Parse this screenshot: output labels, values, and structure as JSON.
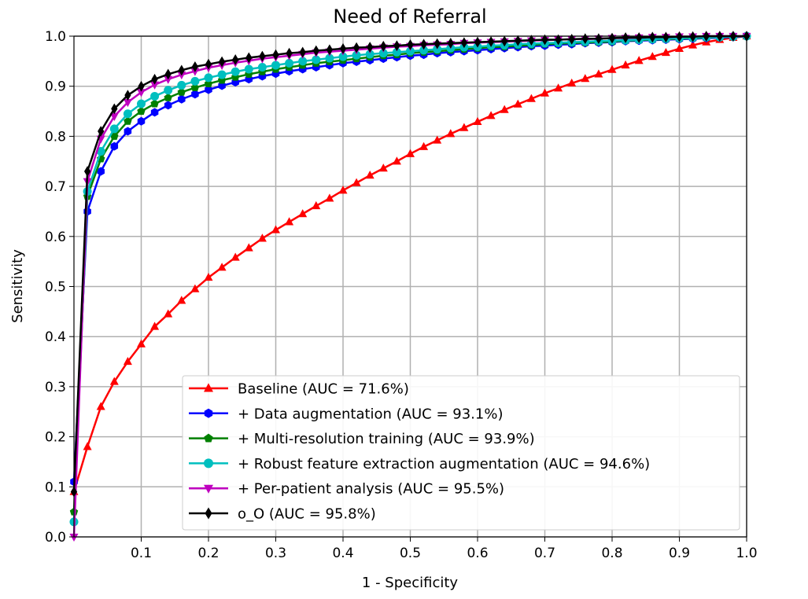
{
  "chart_data": {
    "type": "line",
    "title": "Need of Referral",
    "xlabel": "1 - Specificity",
    "ylabel": "Sensitivity",
    "xlim": [
      0,
      1
    ],
    "ylim": [
      0,
      1
    ],
    "grid": true,
    "legend_position": "lower-right",
    "x_ticks": [
      "0.1",
      "0.2",
      "0.3",
      "0.4",
      "0.5",
      "0.6",
      "0.7",
      "0.8",
      "0.9",
      "1.0"
    ],
    "x_tick_values": [
      0.1,
      0.2,
      0.3,
      0.4,
      0.5,
      0.6,
      0.7,
      0.8,
      0.9,
      1.0
    ],
    "y_ticks": [
      "0.0",
      "0.1",
      "0.2",
      "0.3",
      "0.4",
      "0.5",
      "0.6",
      "0.7",
      "0.8",
      "0.9",
      "1.0"
    ],
    "y_tick_values": [
      0,
      0.1,
      0.2,
      0.3,
      0.4,
      0.5,
      0.6,
      0.7,
      0.8,
      0.9,
      1.0
    ],
    "series": [
      {
        "name": "Baseline (AUC = 71.6%)",
        "color": "#ff0000",
        "marker": "triangle-up",
        "x": [
          0,
          0.02,
          0.04,
          0.06,
          0.08,
          0.1,
          0.12,
          0.14,
          0.16,
          0.18,
          0.2,
          0.22,
          0.24,
          0.26,
          0.28,
          0.3,
          0.32,
          0.34,
          0.36,
          0.38,
          0.4,
          0.42,
          0.44,
          0.46,
          0.48,
          0.5,
          0.52,
          0.54,
          0.56,
          0.58,
          0.6,
          0.62,
          0.64,
          0.66,
          0.68,
          0.7,
          0.72,
          0.74,
          0.76,
          0.78,
          0.8,
          0.82,
          0.84,
          0.86,
          0.88,
          0.9,
          0.92,
          0.94,
          0.96,
          0.98,
          1.0
        ],
        "y": [
          0.09,
          0.18,
          0.26,
          0.31,
          0.35,
          0.385,
          0.42,
          0.445,
          0.472,
          0.495,
          0.518,
          0.538,
          0.558,
          0.577,
          0.596,
          0.613,
          0.629,
          0.645,
          0.661,
          0.676,
          0.692,
          0.707,
          0.722,
          0.736,
          0.75,
          0.765,
          0.779,
          0.792,
          0.805,
          0.817,
          0.829,
          0.841,
          0.853,
          0.864,
          0.875,
          0.886,
          0.896,
          0.906,
          0.915,
          0.924,
          0.933,
          0.942,
          0.951,
          0.959,
          0.967,
          0.975,
          0.982,
          0.988,
          0.993,
          0.997,
          1.0
        ]
      },
      {
        "name": "+ Data augmentation (AUC = 93.1%)",
        "color": "#0000ff",
        "marker": "hexagon",
        "x": [
          0,
          0.02,
          0.04,
          0.06,
          0.08,
          0.1,
          0.12,
          0.14,
          0.16,
          0.18,
          0.2,
          0.22,
          0.24,
          0.26,
          0.28,
          0.3,
          0.32,
          0.34,
          0.36,
          0.38,
          0.4,
          0.42,
          0.44,
          0.46,
          0.48,
          0.5,
          0.52,
          0.54,
          0.56,
          0.58,
          0.6,
          0.62,
          0.64,
          0.66,
          0.68,
          0.7,
          0.72,
          0.74,
          0.76,
          0.78,
          0.8,
          0.82,
          0.84,
          0.86,
          0.88,
          0.9,
          0.92,
          0.94,
          0.96,
          0.98,
          1.0
        ],
        "y": [
          0.11,
          0.65,
          0.73,
          0.78,
          0.81,
          0.83,
          0.848,
          0.862,
          0.874,
          0.884,
          0.893,
          0.901,
          0.908,
          0.914,
          0.92,
          0.925,
          0.93,
          0.934,
          0.938,
          0.942,
          0.946,
          0.949,
          0.952,
          0.955,
          0.958,
          0.961,
          0.963,
          0.966,
          0.968,
          0.97,
          0.972,
          0.974,
          0.976,
          0.978,
          0.98,
          0.981,
          0.983,
          0.984,
          0.986,
          0.987,
          0.988,
          0.99,
          0.991,
          0.992,
          0.993,
          0.994,
          0.995,
          0.996,
          0.997,
          0.998,
          1.0
        ]
      },
      {
        "name": "+ Multi-resolution training (AUC = 93.9%)",
        "color": "#008000",
        "marker": "pentagon",
        "x": [
          0,
          0.02,
          0.04,
          0.06,
          0.08,
          0.1,
          0.12,
          0.14,
          0.16,
          0.18,
          0.2,
          0.22,
          0.24,
          0.26,
          0.28,
          0.3,
          0.32,
          0.34,
          0.36,
          0.38,
          0.4,
          0.42,
          0.44,
          0.46,
          0.48,
          0.5,
          0.52,
          0.54,
          0.56,
          0.58,
          0.6,
          0.62,
          0.64,
          0.66,
          0.68,
          0.7,
          0.72,
          0.74,
          0.76,
          0.78,
          0.8,
          0.82,
          0.84,
          0.86,
          0.88,
          0.9,
          0.92,
          0.94,
          0.96,
          0.98,
          1.0
        ],
        "y": [
          0.05,
          0.68,
          0.755,
          0.8,
          0.83,
          0.85,
          0.865,
          0.877,
          0.888,
          0.897,
          0.905,
          0.912,
          0.918,
          0.924,
          0.929,
          0.934,
          0.938,
          0.942,
          0.946,
          0.949,
          0.952,
          0.955,
          0.958,
          0.961,
          0.963,
          0.966,
          0.968,
          0.97,
          0.972,
          0.974,
          0.976,
          0.978,
          0.979,
          0.981,
          0.982,
          0.984,
          0.985,
          0.986,
          0.987,
          0.988,
          0.989,
          0.991,
          0.992,
          0.993,
          0.994,
          0.995,
          0.996,
          0.997,
          0.998,
          0.999,
          1.0
        ]
      },
      {
        "name": "+ Robust feature extraction augmentation (AUC = 94.6%)",
        "color": "#00bfbf",
        "marker": "circle",
        "x": [
          0,
          0.02,
          0.04,
          0.06,
          0.08,
          0.1,
          0.12,
          0.14,
          0.16,
          0.18,
          0.2,
          0.22,
          0.24,
          0.26,
          0.28,
          0.3,
          0.32,
          0.34,
          0.36,
          0.38,
          0.4,
          0.42,
          0.44,
          0.46,
          0.48,
          0.5,
          0.52,
          0.54,
          0.56,
          0.58,
          0.6,
          0.62,
          0.64,
          0.66,
          0.68,
          0.7,
          0.72,
          0.74,
          0.76,
          0.78,
          0.8,
          0.82,
          0.84,
          0.86,
          0.88,
          0.9,
          0.92,
          0.94,
          0.96,
          0.98,
          1.0
        ],
        "y": [
          0.03,
          0.69,
          0.77,
          0.815,
          0.845,
          0.865,
          0.88,
          0.892,
          0.902,
          0.91,
          0.917,
          0.923,
          0.929,
          0.934,
          0.938,
          0.942,
          0.946,
          0.95,
          0.953,
          0.956,
          0.959,
          0.962,
          0.964,
          0.966,
          0.968,
          0.97,
          0.972,
          0.974,
          0.976,
          0.978,
          0.979,
          0.981,
          0.982,
          0.984,
          0.985,
          0.986,
          0.987,
          0.988,
          0.989,
          0.99,
          0.991,
          0.992,
          0.993,
          0.994,
          0.995,
          0.996,
          0.997,
          0.998,
          0.998,
          0.999,
          1.0
        ]
      },
      {
        "name": "+ Per-patient analysis (AUC = 95.5%)",
        "color": "#bf00bf",
        "marker": "triangle-down",
        "x": [
          0,
          0.02,
          0.04,
          0.06,
          0.08,
          0.1,
          0.12,
          0.14,
          0.16,
          0.18,
          0.2,
          0.22,
          0.24,
          0.26,
          0.28,
          0.3,
          0.32,
          0.34,
          0.36,
          0.38,
          0.4,
          0.42,
          0.44,
          0.46,
          0.48,
          0.5,
          0.52,
          0.54,
          0.56,
          0.58,
          0.6,
          0.62,
          0.64,
          0.66,
          0.68,
          0.7,
          0.72,
          0.74,
          0.76,
          0.78,
          0.8,
          0.82,
          0.84,
          0.86,
          0.88,
          0.9,
          0.92,
          0.94,
          0.96,
          0.98,
          1.0
        ],
        "y": [
          0.0,
          0.71,
          0.795,
          0.84,
          0.868,
          0.888,
          0.903,
          0.914,
          0.923,
          0.93,
          0.937,
          0.942,
          0.947,
          0.951,
          0.955,
          0.958,
          0.961,
          0.964,
          0.967,
          0.969,
          0.971,
          0.973,
          0.975,
          0.977,
          0.979,
          0.98,
          0.982,
          0.983,
          0.984,
          0.986,
          0.987,
          0.988,
          0.989,
          0.99,
          0.991,
          0.992,
          0.993,
          0.994,
          0.994,
          0.995,
          0.996,
          0.996,
          0.997,
          0.998,
          0.998,
          0.999,
          0.999,
          1.0,
          1.0,
          1.0,
          1.0
        ]
      },
      {
        "name": "o_O (AUC = 95.8%)",
        "color": "#000000",
        "marker": "diamond",
        "x": [
          0,
          0.02,
          0.04,
          0.06,
          0.08,
          0.1,
          0.12,
          0.14,
          0.16,
          0.18,
          0.2,
          0.22,
          0.24,
          0.26,
          0.28,
          0.3,
          0.32,
          0.34,
          0.36,
          0.38,
          0.4,
          0.42,
          0.44,
          0.46,
          0.48,
          0.5,
          0.52,
          0.54,
          0.56,
          0.58,
          0.6,
          0.62,
          0.64,
          0.66,
          0.68,
          0.7,
          0.72,
          0.74,
          0.76,
          0.78,
          0.8,
          0.82,
          0.84,
          0.86,
          0.88,
          0.9,
          0.92,
          0.94,
          0.96,
          0.98,
          1.0
        ],
        "y": [
          0.09,
          0.73,
          0.81,
          0.855,
          0.882,
          0.9,
          0.914,
          0.924,
          0.932,
          0.939,
          0.944,
          0.949,
          0.953,
          0.957,
          0.96,
          0.963,
          0.966,
          0.968,
          0.971,
          0.973,
          0.975,
          0.977,
          0.978,
          0.98,
          0.981,
          0.983,
          0.984,
          0.985,
          0.986,
          0.987,
          0.988,
          0.989,
          0.99,
          0.991,
          0.992,
          0.993,
          0.993,
          0.994,
          0.995,
          0.995,
          0.996,
          0.997,
          0.997,
          0.998,
          0.998,
          0.999,
          0.999,
          1.0,
          1.0,
          1.0,
          1.0
        ]
      }
    ]
  }
}
